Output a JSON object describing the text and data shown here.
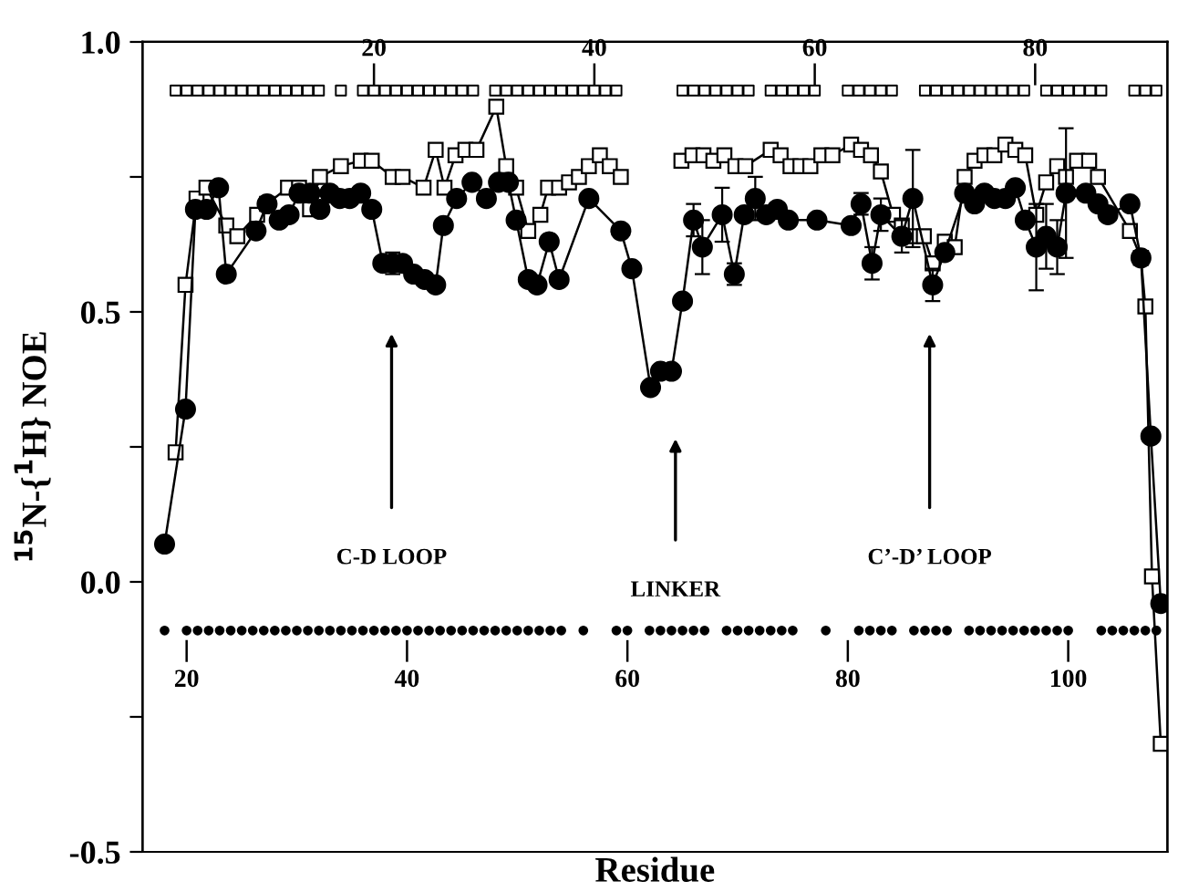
{
  "chart_data": {
    "type": "line",
    "xlabel": "Residue",
    "ylabel": "$^{15}$N-{$^{1}$H} NOE",
    "xlim": [
      16,
      109
    ],
    "xticks": [
      20,
      40,
      60,
      80,
      100
    ],
    "x2lim": [
      -1,
      92
    ],
    "x2ticks": [
      20,
      40,
      60,
      80
    ],
    "ylim": [
      -0.5,
      1.0
    ],
    "yticks": [
      {
        "value": -0.5,
        "label": "-0.5"
      },
      {
        "value": -0.25,
        "label": null
      },
      {
        "value": 0.0,
        "label": "0.0"
      },
      {
        "value": 0.25,
        "label": null
      },
      {
        "value": 0.5,
        "label": "0.5"
      },
      {
        "value": 0.75,
        "label": null
      },
      {
        "value": 1.0,
        "label": "1.0"
      }
    ],
    "grid": false,
    "legend": false,
    "line_style": "solid",
    "annotations": [
      "C-D LOOP",
      "LINKER",
      "C’-D’ LOOP"
    ],
    "series": [
      {
        "marker": "square",
        "color": "#000000",
        "x": [
          19.0,
          19.9,
          20.9,
          21.8,
          23.6,
          24.6,
          26.4,
          27.3,
          29.2,
          30.2,
          31.2,
          32.1,
          34.0,
          35.8,
          36.8,
          38.7,
          39.6,
          41.5,
          42.6,
          43.4,
          44.4,
          45.3,
          46.3,
          48.1,
          49.0,
          49.9,
          51.0,
          52.1,
          52.8,
          53.8,
          54.7,
          55.6,
          56.5,
          57.5,
          58.4,
          59.4,
          62.0,
          64.9,
          65.9,
          66.9,
          67.8,
          68.8,
          69.8,
          70.7,
          73.0,
          73.9,
          74.8,
          75.7,
          76.6,
          77.6,
          78.6,
          80.3,
          81.2,
          82.1,
          83.0,
          84.1,
          84.9,
          85.8,
          86.9,
          87.7,
          88.8,
          89.7,
          90.6,
          91.5,
          92.4,
          93.3,
          94.3,
          95.2,
          96.1,
          97.1,
          98.0,
          99.0,
          99.8,
          100.8,
          101.9,
          102.7,
          105.6,
          106.6,
          107.0,
          107.6,
          108.4
        ],
        "values": [
          0.24,
          0.55,
          0.71,
          0.73,
          0.66,
          0.64,
          0.68,
          0.7,
          0.73,
          0.73,
          0.69,
          0.75,
          0.77,
          0.78,
          0.78,
          0.75,
          0.75,
          0.73,
          0.8,
          0.73,
          0.79,
          0.8,
          0.8,
          0.88,
          0.77,
          0.73,
          0.65,
          0.68,
          0.73,
          0.73,
          0.74,
          0.75,
          0.77,
          0.79,
          0.77,
          0.75,
          null,
          0.78,
          0.79,
          0.79,
          0.78,
          0.79,
          0.77,
          0.77,
          0.8,
          0.79,
          0.77,
          0.77,
          0.77,
          0.79,
          0.79,
          0.81,
          0.8,
          0.79,
          0.76,
          0.68,
          0.66,
          0.64,
          0.64,
          0.59,
          0.63,
          0.62,
          0.75,
          0.78,
          0.79,
          0.79,
          0.81,
          0.8,
          0.79,
          0.68,
          0.74,
          0.77,
          0.75,
          0.78,
          0.78,
          0.75,
          0.65,
          0.6,
          0.51,
          0.01,
          -0.3
        ]
      },
      {
        "marker": "circle",
        "color": "#000000",
        "x": [
          18.0,
          19.9,
          20.8,
          21.8,
          22.9,
          23.6,
          26.3,
          27.3,
          28.4,
          29.3,
          30.2,
          31.2,
          32.1,
          33.0,
          33.9,
          34.8,
          35.8,
          36.8,
          37.8,
          38.7,
          39.6,
          40.6,
          41.6,
          42.6,
          43.3,
          44.5,
          45.9,
          47.2,
          48.3,
          49.2,
          49.9,
          51.0,
          51.8,
          52.9,
          53.8,
          56.5,
          59.4,
          60.4,
          62.1,
          63.0,
          64.0,
          65.0,
          66.0,
          66.8,
          68.6,
          69.7,
          70.6,
          71.6,
          72.6,
          73.6,
          74.6,
          77.2,
          80.3,
          81.2,
          82.2,
          83.0,
          84.9,
          85.9,
          87.7,
          88.8,
          90.6,
          91.5,
          92.4,
          93.3,
          94.3,
          95.2,
          96.1,
          97.1,
          98.0,
          99.0,
          99.8,
          101.6,
          102.7,
          103.6,
          105.6,
          106.6,
          107.5,
          108.4
        ],
        "values": [
          0.07,
          0.32,
          0.69,
          0.69,
          0.73,
          0.57,
          0.65,
          0.7,
          0.67,
          0.68,
          0.72,
          0.72,
          0.69,
          0.72,
          0.71,
          0.71,
          0.72,
          0.69,
          0.59,
          0.59,
          0.59,
          0.57,
          0.56,
          0.55,
          0.66,
          0.71,
          0.74,
          0.71,
          0.74,
          0.74,
          0.67,
          0.56,
          0.55,
          0.63,
          0.56,
          0.71,
          0.65,
          0.58,
          0.36,
          0.39,
          0.39,
          0.52,
          0.67,
          0.62,
          0.68,
          0.57,
          0.68,
          0.71,
          0.68,
          0.69,
          0.67,
          0.67,
          0.66,
          0.7,
          0.59,
          0.68,
          0.64,
          0.71,
          0.55,
          0.61,
          0.72,
          0.7,
          0.72,
          0.71,
          0.71,
          0.73,
          0.67,
          0.62,
          0.64,
          0.62,
          0.72,
          0.72,
          0.7,
          0.68,
          0.7,
          0.6,
          0.27,
          -0.04
        ],
        "errors": [
          null,
          null,
          null,
          null,
          null,
          null,
          null,
          null,
          null,
          null,
          null,
          null,
          null,
          null,
          null,
          null,
          null,
          null,
          null,
          0.02,
          null,
          null,
          null,
          null,
          null,
          null,
          null,
          null,
          null,
          null,
          null,
          null,
          null,
          null,
          null,
          null,
          null,
          null,
          0.01,
          null,
          null,
          null,
          0.03,
          0.05,
          0.05,
          0.02,
          null,
          0.04,
          null,
          null,
          null,
          null,
          null,
          0.02,
          0.03,
          0.03,
          0.03,
          0.09,
          0.03,
          null,
          null,
          null,
          null,
          null,
          null,
          null,
          null,
          0.08,
          0.06,
          0.05,
          0.12,
          null,
          null,
          null,
          null,
          null,
          null,
          null
        ]
      },
      {
        "type": "scatter",
        "marker": "square",
        "color": "#000000",
        "x": [
          19,
          20,
          21,
          22,
          23,
          24,
          25,
          26,
          27,
          28,
          29,
          30,
          31,
          32,
          34,
          36,
          37,
          38,
          39,
          40,
          41,
          42,
          43,
          44,
          45,
          46,
          48,
          49,
          50,
          51,
          52,
          53,
          54,
          55,
          56,
          57,
          58,
          59,
          65,
          66,
          67,
          68,
          69,
          70,
          71,
          73,
          74,
          75,
          76,
          77,
          80,
          81,
          82,
          83,
          84,
          87,
          88,
          89,
          90,
          91,
          92,
          93,
          94,
          95,
          96,
          98,
          99,
          100,
          101,
          102,
          103,
          106,
          107,
          108
        ],
        "values": [
          0.91,
          0.91,
          0.91,
          0.91,
          0.91,
          0.91,
          0.91,
          0.91,
          0.91,
          0.91,
          0.91,
          0.91,
          0.91,
          0.91,
          0.91,
          0.91,
          0.91,
          0.91,
          0.91,
          0.91,
          0.91,
          0.91,
          0.91,
          0.91,
          0.91,
          0.91,
          0.91,
          0.91,
          0.91,
          0.91,
          0.91,
          0.91,
          0.91,
          0.91,
          0.91,
          0.91,
          0.91,
          0.91,
          0.91,
          0.91,
          0.91,
          0.91,
          0.91,
          0.91,
          0.91,
          0.91,
          0.91,
          0.91,
          0.91,
          0.91,
          0.91,
          0.91,
          0.91,
          0.91,
          0.91,
          0.91,
          0.91,
          0.91,
          0.91,
          0.91,
          0.91,
          0.91,
          0.91,
          0.91,
          0.91,
          0.91,
          0.91,
          0.91,
          0.91,
          0.91,
          0.91,
          0.91,
          0.91,
          0.91
        ]
      },
      {
        "type": "scatter",
        "marker": "circle",
        "color": "#000000",
        "x": [
          18,
          20,
          21,
          22,
          23,
          24,
          25,
          26,
          27,
          28,
          29,
          30,
          31,
          32,
          33,
          34,
          35,
          36,
          37,
          38,
          39,
          40,
          41,
          42,
          43,
          44,
          45,
          46,
          47,
          48,
          49,
          50,
          51,
          52,
          53,
          54,
          56,
          59,
          60,
          62,
          63,
          64,
          65,
          66,
          67,
          69,
          70,
          71,
          72,
          73,
          74,
          75,
          78,
          81,
          82,
          83,
          84,
          86,
          87,
          88,
          89,
          91,
          92,
          93,
          94,
          95,
          96,
          97,
          98,
          99,
          100,
          103,
          104,
          105,
          106,
          107,
          108
        ],
        "values": [
          -0.09,
          -0.09,
          -0.09,
          -0.09,
          -0.09,
          -0.09,
          -0.09,
          -0.09,
          -0.09,
          -0.09,
          -0.09,
          -0.09,
          -0.09,
          -0.09,
          -0.09,
          -0.09,
          -0.09,
          -0.09,
          -0.09,
          -0.09,
          -0.09,
          -0.09,
          -0.09,
          -0.09,
          -0.09,
          -0.09,
          -0.09,
          -0.09,
          -0.09,
          -0.09,
          -0.09,
          -0.09,
          -0.09,
          -0.09,
          -0.09,
          -0.09,
          -0.09,
          -0.09,
          -0.09,
          -0.09,
          -0.09,
          -0.09,
          -0.09,
          -0.09,
          -0.09,
          -0.09,
          -0.09,
          -0.09,
          -0.09,
          -0.09,
          -0.09,
          -0.09,
          -0.09,
          -0.09,
          -0.09,
          -0.09,
          -0.09,
          -0.09,
          -0.09,
          -0.09,
          -0.09,
          -0.09,
          -0.09,
          -0.09,
          -0.09,
          -0.09,
          -0.09,
          -0.09,
          -0.09,
          -0.09,
          -0.09,
          -0.09,
          -0.09,
          -0.09,
          -0.09,
          -0.09,
          -0.09
        ]
      }
    ]
  }
}
